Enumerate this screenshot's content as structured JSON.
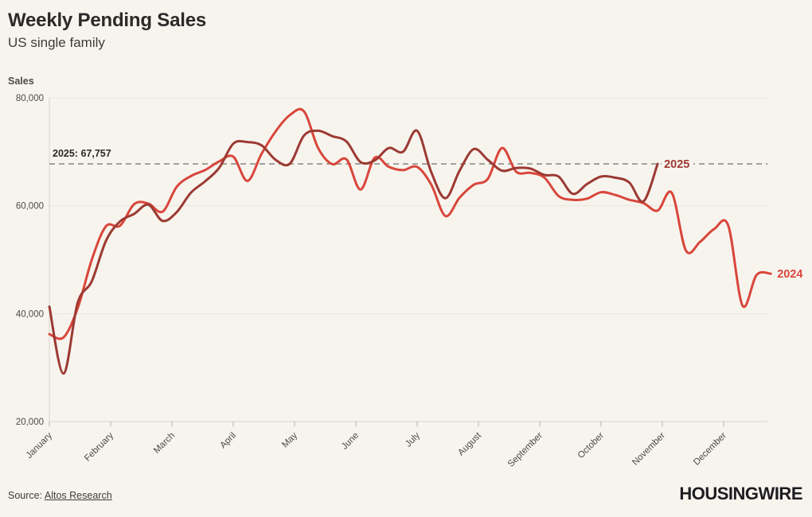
{
  "header": {
    "title": "Weekly Pending Sales",
    "subtitle": "US single family"
  },
  "chart_data": {
    "type": "line",
    "title": "Weekly Pending Sales",
    "subtitle": "US single family",
    "ylabel": "Sales",
    "y_axis": {
      "label": "Sales",
      "ticks": [
        20000,
        40000,
        60000,
        80000
      ],
      "range": [
        20000,
        80000
      ],
      "grid": true
    },
    "x_axis": {
      "months": [
        "January",
        "February",
        "March",
        "April",
        "May",
        "June",
        "July",
        "August",
        "September",
        "October",
        "November",
        "December"
      ],
      "tick_marks": true
    },
    "annotation": {
      "label": "2025: 67,757",
      "value": 67757,
      "style": "dashed-horizontal"
    },
    "legend_position": "line-end-labels",
    "series": [
      {
        "name": "2024",
        "color": "#d9463b",
        "start_week": 0,
        "values": [
          36200,
          35600,
          41000,
          50000,
          56200,
          56300,
          60300,
          60400,
          58900,
          63500,
          65500,
          66600,
          68200,
          69100,
          64600,
          69600,
          73800,
          76800,
          77500,
          70700,
          67700,
          68600,
          63000,
          68900,
          67200,
          66600,
          67200,
          63900,
          58100,
          61500,
          63900,
          65000,
          70700,
          66300,
          66100,
          65200,
          61800,
          61100,
          61300,
          62500,
          62000,
          61100,
          60500,
          59100,
          62400,
          51700,
          53300,
          55700,
          56300,
          41500,
          47200,
          47400
        ]
      },
      {
        "name": "2025",
        "color": "#9c3a33",
        "start_week": 0,
        "values": [
          41300,
          28900,
          42000,
          46000,
          53500,
          57100,
          58500,
          60200,
          57200,
          58800,
          62400,
          64500,
          67000,
          71500,
          71800,
          71200,
          68500,
          67800,
          73000,
          73900,
          72900,
          71900,
          68100,
          68400,
          70700,
          70000,
          73900,
          66200,
          61400,
          66500,
          70500,
          68500,
          66500,
          67000,
          66900,
          65700,
          65400,
          62200,
          64000,
          65400,
          65200,
          64300,
          60800,
          67757
        ]
      }
    ],
    "colors": {
      "background": "#f7f4ee",
      "grid": "#e8e5de",
      "axis": "#d6d3cc",
      "tick": "#b3b0a9",
      "dashed_line": "#8f8d89",
      "axis_text": "#4c4b49"
    }
  },
  "footer": {
    "source_prefix": "Source:",
    "source_link": "Altos Research",
    "logo": "HOUSINGWIRE"
  }
}
